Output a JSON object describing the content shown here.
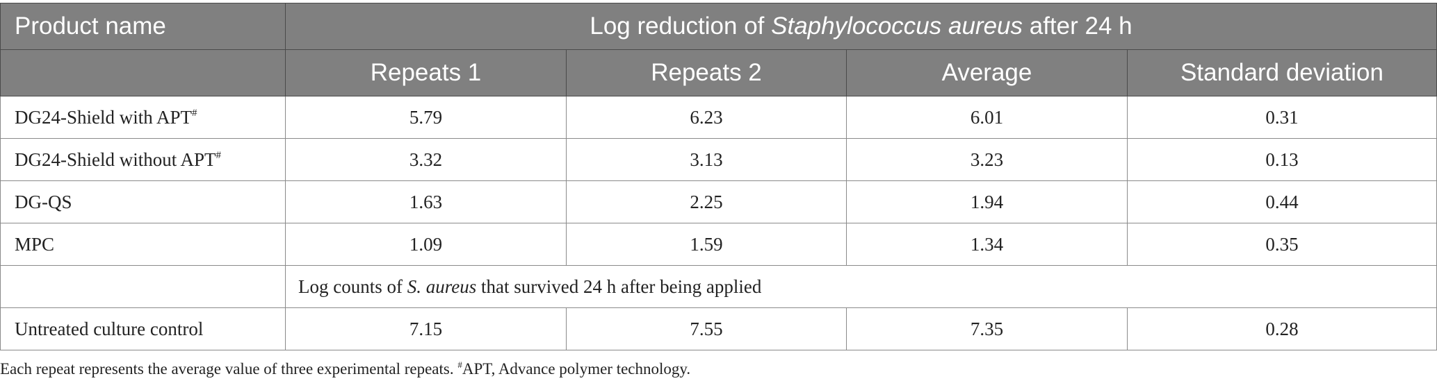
{
  "table": {
    "header": {
      "product_col": "Product name",
      "group_title_prefix": "Log reduction of ",
      "group_title_italic": "Staphylococcus aureus",
      "group_title_suffix": " after 24 h",
      "columns": [
        "Repeats 1",
        "Repeats 2",
        "Average",
        "Standard deviation"
      ]
    },
    "rows": [
      {
        "name": "DG24-Shield with APT",
        "mark": "#",
        "values": [
          "5.79",
          "6.23",
          "6.01",
          "0.31"
        ]
      },
      {
        "name": "DG24-Shield without APT",
        "mark": "#",
        "values": [
          "3.32",
          "3.13",
          "3.23",
          "0.13"
        ]
      },
      {
        "name": "DG-QS",
        "mark": "",
        "values": [
          "1.63",
          "2.25",
          "1.94",
          "0.44"
        ]
      },
      {
        "name": "MPC",
        "mark": "",
        "values": [
          "1.09",
          "1.59",
          "1.34",
          "0.35"
        ]
      }
    ],
    "subheader": {
      "prefix": "Log counts of ",
      "italic": "S. aureus",
      "suffix": " that survived 24 h after being applied"
    },
    "control_row": {
      "name": "Untreated culture control",
      "values": [
        "7.15",
        "7.55",
        "7.35",
        "0.28"
      ]
    }
  },
  "footnote": {
    "text1": "Each repeat represents the average value of three experimental repeats. ",
    "mark": "#",
    "text2": "APT, Advance polymer technology."
  }
}
